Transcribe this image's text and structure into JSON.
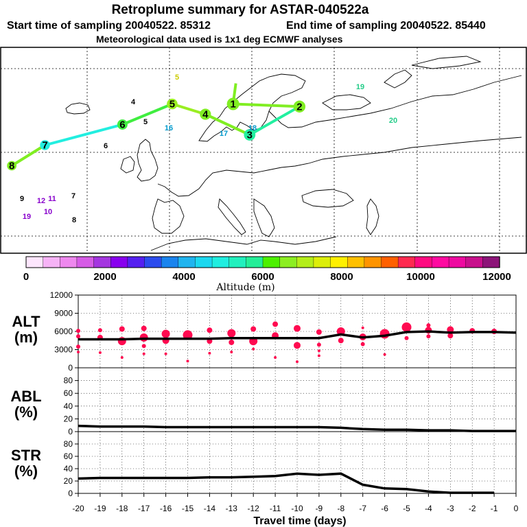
{
  "header": {
    "title": "Retroplume summary for ASTAR-040522a",
    "start_label": "Start time of sampling 20040522. 85312",
    "end_label": "End time of sampling 20040522. 85440",
    "met_label": "Meteorological data used is 1x1 deg ECMWF analyses"
  },
  "colorbar": {
    "title": "Altitude (m)",
    "tick_labels": [
      "0",
      "2000",
      "4000",
      "6000",
      "8000",
      "10000",
      "12000"
    ],
    "colors": [
      "#fde6fd",
      "#f6b3f6",
      "#ee88ee",
      "#d65ce6",
      "#a436e0",
      "#8800ee",
      "#5520f0",
      "#2c4cee",
      "#1a84ee",
      "#20b4ef",
      "#1cd8f0",
      "#20eee0",
      "#22f0be",
      "#24ee98",
      "#4cf000",
      "#8cee22",
      "#b4ee1a",
      "#dcee0a",
      "#fff000",
      "#ffc000",
      "#ff9400",
      "#ff6000",
      "#ff2a50",
      "#ff0a80",
      "#ff0aa0",
      "#ee0aa0",
      "#c8108c",
      "#8c1478"
    ]
  },
  "chart_data": [
    {
      "id": "map",
      "type": "map-trajectory",
      "description_labels": [],
      "track_points": [
        {
          "label": "1",
          "lon": 7,
          "lat": 63,
          "color": "#80ee22"
        },
        {
          "label": "2",
          "lon": 19,
          "lat": 62.5,
          "color": "#80ee22"
        },
        {
          "label": "3",
          "lon": 10,
          "lat": 57,
          "color": "#22f0a0"
        },
        {
          "label": "4",
          "lon": 2,
          "lat": 61,
          "color": "#80ee22"
        },
        {
          "label": "5",
          "lon": -4,
          "lat": 63,
          "color": "#9aee22"
        },
        {
          "label": "6",
          "lon": -13,
          "lat": 59,
          "color": "#40ee40"
        },
        {
          "label": "7",
          "lon": -27,
          "lat": 55,
          "color": "#22eee0"
        },
        {
          "label": "8",
          "lon": -33,
          "lat": 51,
          "color": "#80ee22"
        }
      ],
      "scatter_labels": [
        {
          "t": "5",
          "c": "#cccc00"
        },
        {
          "t": "19",
          "c": "#22cc88"
        },
        {
          "t": "20",
          "c": "#22cc88"
        },
        {
          "t": "4",
          "c": "#000000"
        },
        {
          "t": "5",
          "c": "#000000"
        },
        {
          "t": "6",
          "c": "#000000"
        },
        {
          "t": "16",
          "c": "#0099cc"
        },
        {
          "t": "17",
          "c": "#0099cc"
        },
        {
          "t": "18",
          "c": "#0099cc"
        },
        {
          "t": "12",
          "c": "#8800cc"
        },
        {
          "t": "11",
          "c": "#8800cc"
        },
        {
          "t": "10",
          "c": "#8800cc"
        },
        {
          "t": "19",
          "c": "#8800cc"
        },
        {
          "t": "7",
          "c": "#000000"
        },
        {
          "t": "8",
          "c": "#000000"
        },
        {
          "t": "9",
          "c": "#000000"
        }
      ]
    },
    {
      "id": "alt",
      "type": "line",
      "panel_label": "ALT\n(m)",
      "panel_label_1": "ALT",
      "panel_label_2": "(m)",
      "ylim": [
        0,
        12000
      ],
      "yticks": [
        "0",
        "3000",
        "6000",
        "9000",
        "12000"
      ],
      "x": [
        -20,
        -19,
        -18,
        -17,
        -16,
        -15,
        -14,
        -13,
        -12,
        -11,
        -10,
        -9,
        -8,
        -7,
        -6,
        -5,
        -4,
        -3,
        -2,
        -1,
        0
      ],
      "values": [
        4700,
        4700,
        4700,
        4800,
        4800,
        4800,
        4800,
        4900,
        4900,
        4900,
        4900,
        4900,
        5500,
        5000,
        5300,
        5900,
        6000,
        5800,
        5900,
        5900,
        5800
      ],
      "series_color": "#000000",
      "points_color": "#ff0a50",
      "scatter": [
        {
          "x": -20,
          "y": 6100,
          "s": 3
        },
        {
          "x": -20,
          "y": 5200,
          "s": 3
        },
        {
          "x": -20,
          "y": 3500,
          "s": 3
        },
        {
          "x": -20,
          "y": 2600,
          "s": 2
        },
        {
          "x": -19,
          "y": 6200,
          "s": 3
        },
        {
          "x": -19,
          "y": 5000,
          "s": 4
        },
        {
          "x": -19,
          "y": 2500,
          "s": 2
        },
        {
          "x": -18,
          "y": 6400,
          "s": 4
        },
        {
          "x": -18,
          "y": 4400,
          "s": 6
        },
        {
          "x": -18,
          "y": 1700,
          "s": 2
        },
        {
          "x": -17,
          "y": 6500,
          "s": 4
        },
        {
          "x": -17,
          "y": 5000,
          "s": 6
        },
        {
          "x": -17,
          "y": 3600,
          "s": 3
        },
        {
          "x": -17,
          "y": 2300,
          "s": 2
        },
        {
          "x": -16,
          "y": 5600,
          "s": 6
        },
        {
          "x": -16,
          "y": 4500,
          "s": 5
        },
        {
          "x": -16,
          "y": 2300,
          "s": 2
        },
        {
          "x": -15,
          "y": 5400,
          "s": 7
        },
        {
          "x": -15,
          "y": 1100,
          "s": 2
        },
        {
          "x": -14,
          "y": 6200,
          "s": 4
        },
        {
          "x": -14,
          "y": 4400,
          "s": 4
        },
        {
          "x": -14,
          "y": 2400,
          "s": 2
        },
        {
          "x": -13,
          "y": 5700,
          "s": 6
        },
        {
          "x": -13,
          "y": 4200,
          "s": 4
        },
        {
          "x": -13,
          "y": 2600,
          "s": 2
        },
        {
          "x": -12,
          "y": 6400,
          "s": 4
        },
        {
          "x": -12,
          "y": 4400,
          "s": 6
        },
        {
          "x": -12,
          "y": 3100,
          "s": 2
        },
        {
          "x": -11,
          "y": 7200,
          "s": 4
        },
        {
          "x": -11,
          "y": 5300,
          "s": 5
        },
        {
          "x": -11,
          "y": 1700,
          "s": 2
        },
        {
          "x": -10,
          "y": 6500,
          "s": 5
        },
        {
          "x": -10,
          "y": 3700,
          "s": 5
        },
        {
          "x": -10,
          "y": 1000,
          "s": 2
        },
        {
          "x": -9,
          "y": 5900,
          "s": 4
        },
        {
          "x": -9,
          "y": 3800,
          "s": 3
        },
        {
          "x": -9,
          "y": 2800,
          "s": 2
        },
        {
          "x": -9,
          "y": 2000,
          "s": 2
        },
        {
          "x": -8,
          "y": 6000,
          "s": 6
        },
        {
          "x": -8,
          "y": 4500,
          "s": 4
        },
        {
          "x": -7,
          "y": 5100,
          "s": 5
        },
        {
          "x": -7,
          "y": 3900,
          "s": 3
        },
        {
          "x": -7,
          "y": 6600,
          "s": 2
        },
        {
          "x": -6,
          "y": 5600,
          "s": 7
        },
        {
          "x": -6,
          "y": 2200,
          "s": 2
        },
        {
          "x": -5,
          "y": 6700,
          "s": 7
        },
        {
          "x": -5,
          "y": 4900,
          "s": 3
        },
        {
          "x": -4,
          "y": 7000,
          "s": 3
        },
        {
          "x": -4,
          "y": 6200,
          "s": 5
        },
        {
          "x": -4,
          "y": 5200,
          "s": 3
        },
        {
          "x": -3,
          "y": 6300,
          "s": 5
        },
        {
          "x": -3,
          "y": 5300,
          "s": 4
        },
        {
          "x": -2,
          "y": 6100,
          "s": 4
        },
        {
          "x": -1,
          "y": 6000,
          "s": 4
        }
      ]
    },
    {
      "id": "abl",
      "type": "line",
      "panel_label_1": "ABL",
      "panel_label_2": "(%)",
      "ylim": [
        0,
        100
      ],
      "yticks": [
        "0",
        "20",
        "40",
        "60",
        "80"
      ],
      "x": [
        -20,
        -19,
        -18,
        -17,
        -16,
        -15,
        -14,
        -13,
        -12,
        -11,
        -10,
        -9,
        -8,
        -7,
        -6,
        -5,
        -4,
        -3,
        -2,
        -1,
        0
      ],
      "values": [
        9,
        8,
        8,
        8,
        7,
        7,
        7,
        7,
        7,
        7,
        7,
        7,
        6,
        4,
        3,
        3,
        2,
        2,
        1,
        1,
        1
      ]
    },
    {
      "id": "str",
      "type": "line",
      "panel_label_1": "STR",
      "panel_label_2": "(%)",
      "ylim": [
        0,
        100
      ],
      "yticks": [
        "0",
        "20",
        "40",
        "60",
        "80"
      ],
      "x": [
        -20,
        -19,
        -18,
        -17,
        -16,
        -15,
        -14,
        -13,
        -12,
        -11,
        -10,
        -9,
        -8,
        -7,
        -6,
        -5,
        -4,
        -3,
        -2,
        -1
      ],
      "values": [
        24,
        25,
        25,
        25,
        25,
        25,
        26,
        26,
        27,
        28,
        32,
        30,
        32,
        14,
        8,
        7,
        3,
        1,
        1,
        1
      ],
      "xlabel": "Travel time (days)",
      "xtick_labels": [
        "-20",
        "-19",
        "-18",
        "-17",
        "-16",
        "-15",
        "-14",
        "-13",
        "-12",
        "-11",
        "-10",
        "-9",
        "-8",
        "-7",
        "-6",
        "-5",
        "-4",
        "-3",
        "-2",
        "-1",
        "0"
      ]
    }
  ]
}
